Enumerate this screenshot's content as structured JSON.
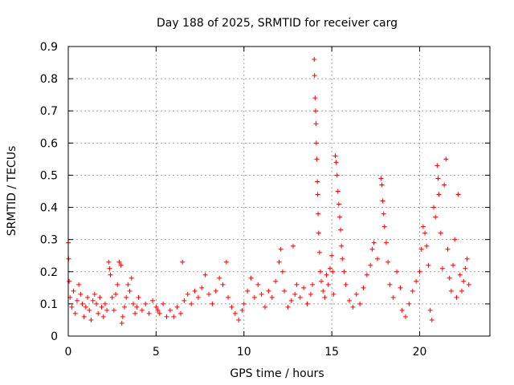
{
  "chart_data": {
    "type": "scatter",
    "title": "Day 188 of 2025, SRMTID for receiver carg",
    "xlabel": "GPS time / hours",
    "ylabel": "SRMTID / TECUs",
    "xlim": [
      0,
      24
    ],
    "ylim": [
      0,
      0.9
    ],
    "grid": true,
    "marker": "+",
    "color": "#ff0000",
    "xticks": [
      0,
      5,
      10,
      15,
      20
    ],
    "xtick_labels": [
      "0",
      "5",
      "10",
      "15",
      "20"
    ],
    "yticks": [
      0,
      0.1,
      0.2,
      0.3,
      0.4,
      0.5,
      0.6,
      0.7,
      0.8,
      0.9
    ],
    "ytick_labels": [
      "0",
      "0.1",
      "0.2",
      "0.3",
      "0.4",
      "0.5",
      "0.6",
      "0.7",
      "0.8",
      "0.9"
    ],
    "series": [
      {
        "name": "SRMTID",
        "points": [
          [
            0.0,
            0.29
          ],
          [
            0.02,
            0.24
          ],
          [
            0.05,
            0.17
          ],
          [
            0.1,
            0.12
          ],
          [
            0.2,
            0.09
          ],
          [
            0.3,
            0.14
          ],
          [
            0.4,
            0.07
          ],
          [
            0.5,
            0.11
          ],
          [
            0.6,
            0.16
          ],
          [
            0.7,
            0.13
          ],
          [
            0.8,
            0.1
          ],
          [
            0.9,
            0.06
          ],
          [
            1.0,
            0.09
          ],
          [
            1.1,
            0.12
          ],
          [
            1.2,
            0.08
          ],
          [
            1.3,
            0.05
          ],
          [
            1.4,
            0.11
          ],
          [
            1.5,
            0.13
          ],
          [
            1.6,
            0.1
          ],
          [
            1.7,
            0.07
          ],
          [
            1.8,
            0.12
          ],
          [
            1.9,
            0.09
          ],
          [
            2.0,
            0.06
          ],
          [
            2.1,
            0.1
          ],
          [
            2.2,
            0.08
          ],
          [
            2.3,
            0.23
          ],
          [
            2.35,
            0.21
          ],
          [
            2.4,
            0.19
          ],
          [
            2.5,
            0.12
          ],
          [
            2.6,
            0.08
          ],
          [
            2.7,
            0.13
          ],
          [
            2.8,
            0.16
          ],
          [
            2.9,
            0.23
          ],
          [
            3.0,
            0.22
          ],
          [
            3.05,
            0.04
          ],
          [
            3.1,
            0.06
          ],
          [
            3.2,
            0.09
          ],
          [
            3.3,
            0.12
          ],
          [
            3.4,
            0.16
          ],
          [
            3.5,
            0.14
          ],
          [
            3.6,
            0.18
          ],
          [
            3.7,
            0.1
          ],
          [
            3.8,
            0.07
          ],
          [
            3.9,
            0.09
          ],
          [
            4.0,
            0.12
          ],
          [
            4.2,
            0.08
          ],
          [
            4.4,
            0.1
          ],
          [
            4.6,
            0.07
          ],
          [
            4.8,
            0.11
          ],
          [
            5.0,
            0.09
          ],
          [
            5.1,
            0.08
          ],
          [
            5.2,
            0.07
          ],
          [
            5.4,
            0.1
          ],
          [
            5.6,
            0.06
          ],
          [
            5.8,
            0.08
          ],
          [
            6.0,
            0.06
          ],
          [
            6.2,
            0.09
          ],
          [
            6.4,
            0.07
          ],
          [
            6.5,
            0.23
          ],
          [
            6.6,
            0.11
          ],
          [
            6.8,
            0.13
          ],
          [
            7.0,
            0.1
          ],
          [
            7.2,
            0.14
          ],
          [
            7.4,
            0.12
          ],
          [
            7.6,
            0.15
          ],
          [
            7.8,
            0.19
          ],
          [
            8.0,
            0.13
          ],
          [
            8.2,
            0.1
          ],
          [
            8.4,
            0.14
          ],
          [
            8.6,
            0.18
          ],
          [
            8.8,
            0.16
          ],
          [
            9.0,
            0.23
          ],
          [
            9.1,
            0.12
          ],
          [
            9.3,
            0.09
          ],
          [
            9.5,
            0.07
          ],
          [
            9.7,
            0.05
          ],
          [
            9.9,
            0.08
          ],
          [
            10.0,
            0.1
          ],
          [
            10.2,
            0.14
          ],
          [
            10.4,
            0.18
          ],
          [
            10.6,
            0.12
          ],
          [
            10.8,
            0.16
          ],
          [
            11.0,
            0.13
          ],
          [
            11.2,
            0.09
          ],
          [
            11.4,
            0.14
          ],
          [
            11.6,
            0.12
          ],
          [
            11.8,
            0.17
          ],
          [
            12.0,
            0.23
          ],
          [
            12.1,
            0.27
          ],
          [
            12.2,
            0.2
          ],
          [
            12.3,
            0.14
          ],
          [
            12.5,
            0.09
          ],
          [
            12.7,
            0.11
          ],
          [
            12.8,
            0.28
          ],
          [
            12.9,
            0.13
          ],
          [
            13.0,
            0.16
          ],
          [
            13.2,
            0.12
          ],
          [
            13.4,
            0.15
          ],
          [
            13.6,
            0.1
          ],
          [
            13.8,
            0.13
          ],
          [
            13.9,
            0.16
          ],
          [
            14.0,
            0.86
          ],
          [
            14.02,
            0.81
          ],
          [
            14.05,
            0.74
          ],
          [
            14.08,
            0.7
          ],
          [
            14.1,
            0.66
          ],
          [
            14.12,
            0.6
          ],
          [
            14.15,
            0.55
          ],
          [
            14.18,
            0.48
          ],
          [
            14.2,
            0.44
          ],
          [
            14.22,
            0.38
          ],
          [
            14.25,
            0.32
          ],
          [
            14.3,
            0.26
          ],
          [
            14.35,
            0.2
          ],
          [
            14.4,
            0.17
          ],
          [
            14.5,
            0.14
          ],
          [
            14.6,
            0.12
          ],
          [
            14.7,
            0.19
          ],
          [
            14.8,
            0.16
          ],
          [
            14.9,
            0.21
          ],
          [
            15.0,
            0.25
          ],
          [
            15.05,
            0.2
          ],
          [
            15.1,
            0.13
          ],
          [
            15.2,
            0.56
          ],
          [
            15.25,
            0.54
          ],
          [
            15.3,
            0.5
          ],
          [
            15.35,
            0.45
          ],
          [
            15.4,
            0.41
          ],
          [
            15.45,
            0.37
          ],
          [
            15.5,
            0.33
          ],
          [
            15.55,
            0.28
          ],
          [
            15.6,
            0.24
          ],
          [
            15.7,
            0.2
          ],
          [
            15.8,
            0.16
          ],
          [
            16.0,
            0.11
          ],
          [
            16.2,
            0.09
          ],
          [
            16.4,
            0.13
          ],
          [
            16.6,
            0.1
          ],
          [
            16.8,
            0.15
          ],
          [
            17.0,
            0.19
          ],
          [
            17.2,
            0.22
          ],
          [
            17.3,
            0.27
          ],
          [
            17.4,
            0.29
          ],
          [
            17.6,
            0.24
          ],
          [
            17.8,
            0.49
          ],
          [
            17.85,
            0.47
          ],
          [
            17.9,
            0.42
          ],
          [
            17.95,
            0.38
          ],
          [
            18.0,
            0.34
          ],
          [
            18.1,
            0.29
          ],
          [
            18.2,
            0.23
          ],
          [
            18.3,
            0.16
          ],
          [
            18.5,
            0.12
          ],
          [
            18.7,
            0.2
          ],
          [
            18.9,
            0.15
          ],
          [
            19.0,
            0.08
          ],
          [
            19.2,
            0.06
          ],
          [
            19.4,
            0.1
          ],
          [
            19.6,
            0.14
          ],
          [
            19.8,
            0.17
          ],
          [
            20.0,
            0.2
          ],
          [
            20.1,
            0.27
          ],
          [
            20.2,
            0.34
          ],
          [
            20.3,
            0.32
          ],
          [
            20.4,
            0.28
          ],
          [
            20.5,
            0.22
          ],
          [
            20.6,
            0.08
          ],
          [
            20.7,
            0.05
          ],
          [
            20.8,
            0.4
          ],
          [
            20.9,
            0.37
          ],
          [
            21.0,
            0.53
          ],
          [
            21.05,
            0.49
          ],
          [
            21.1,
            0.44
          ],
          [
            21.2,
            0.32
          ],
          [
            21.3,
            0.21
          ],
          [
            21.4,
            0.47
          ],
          [
            21.5,
            0.55
          ],
          [
            21.6,
            0.27
          ],
          [
            21.7,
            0.18
          ],
          [
            21.8,
            0.14
          ],
          [
            21.9,
            0.22
          ],
          [
            22.0,
            0.3
          ],
          [
            22.1,
            0.12
          ],
          [
            22.2,
            0.44
          ],
          [
            22.3,
            0.19
          ],
          [
            22.4,
            0.14
          ],
          [
            22.5,
            0.17
          ],
          [
            22.6,
            0.21
          ],
          [
            22.7,
            0.24
          ],
          [
            22.8,
            0.16
          ]
        ]
      }
    ]
  }
}
